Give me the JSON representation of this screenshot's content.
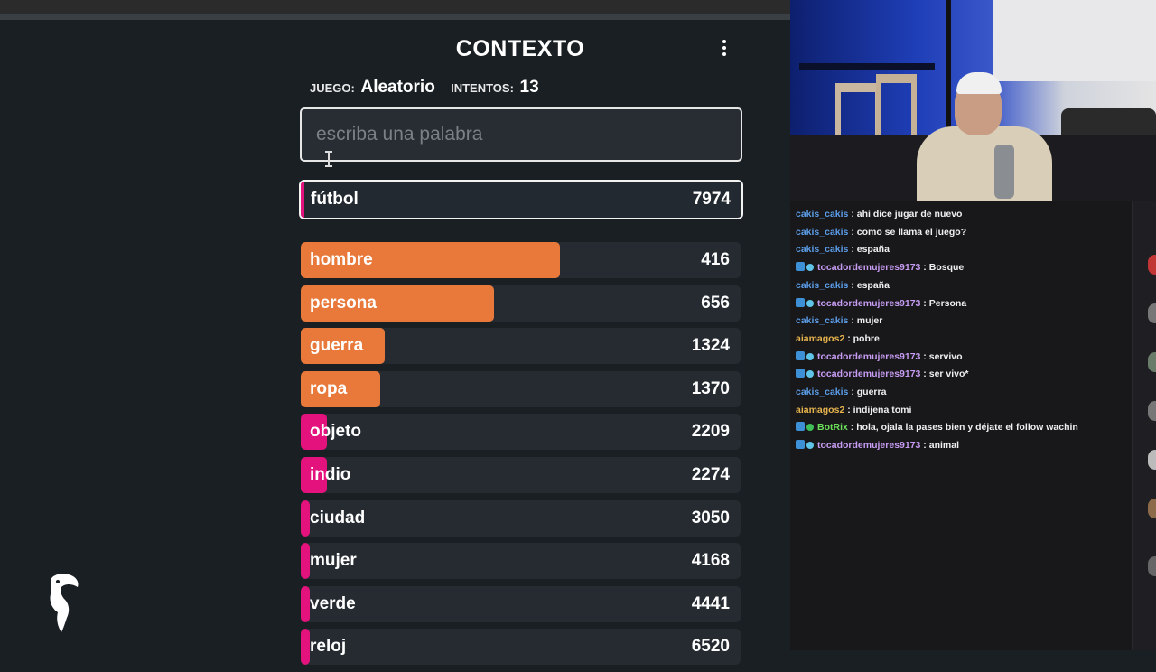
{
  "game": {
    "title": "CONTEXTO",
    "juego_label": "JUEGO:",
    "juego_value": "Aleatorio",
    "intentos_label": "INTENTOS:",
    "intentos_value": "13",
    "search_placeholder": "escriba una palabra",
    "current_guess": {
      "word": "fútbol",
      "rank": "7974"
    },
    "guesses": [
      {
        "word": "hombre",
        "rank": "416",
        "fill": 0.59,
        "color": "#e8793a"
      },
      {
        "word": "persona",
        "rank": "656",
        "fill": 0.44,
        "color": "#e8793a"
      },
      {
        "word": "guerra",
        "rank": "1324",
        "fill": 0.19,
        "color": "#e8793a"
      },
      {
        "word": "ropa",
        "rank": "1370",
        "fill": 0.18,
        "color": "#e8793a"
      },
      {
        "word": "objeto",
        "rank": "2209",
        "fill": 0.06,
        "color": "#e4127c"
      },
      {
        "word": "indio",
        "rank": "2274",
        "fill": 0.06,
        "color": "#e4127c"
      },
      {
        "word": "ciudad",
        "rank": "3050",
        "fill": 0.02,
        "color": "#e4127c"
      },
      {
        "word": "mujer",
        "rank": "4168",
        "fill": 0.01,
        "color": "#e4127c"
      },
      {
        "word": "verde",
        "rank": "4441",
        "fill": 0.01,
        "color": "#e4127c"
      },
      {
        "word": "reloj",
        "rank": "6520",
        "fill": 0.01,
        "color": "#e4127c"
      }
    ]
  },
  "chat": {
    "messages": [
      {
        "user": "cakis_cakis",
        "color": "#5b9ce6",
        "badges": [],
        "text": "ahi dice jugar de nuevo"
      },
      {
        "user": "cakis_cakis",
        "color": "#5b9ce6",
        "badges": [],
        "text": "como se llama el juego?"
      },
      {
        "user": "cakis_cakis",
        "color": "#5b9ce6",
        "badges": [],
        "text": "españa"
      },
      {
        "user": "tocadordemujeres9173",
        "color": "#c79cf2",
        "badges": [
          "prime",
          "gem"
        ],
        "text": "Bosque"
      },
      {
        "user": "cakis_cakis",
        "color": "#5b9ce6",
        "badges": [],
        "text": "españa"
      },
      {
        "user": "tocadordemujeres9173",
        "color": "#c79cf2",
        "badges": [
          "prime",
          "gem"
        ],
        "text": "Persona"
      },
      {
        "user": "cakis_cakis",
        "color": "#5b9ce6",
        "badges": [],
        "text": "mujer"
      },
      {
        "user": "aiamagos2",
        "color": "#e6b34d",
        "badges": [],
        "text": "pobre"
      },
      {
        "user": "tocadordemujeres9173",
        "color": "#c79cf2",
        "badges": [
          "prime",
          "gem"
        ],
        "text": "servivo"
      },
      {
        "user": "tocadordemujeres9173",
        "color": "#c79cf2",
        "badges": [
          "prime",
          "gem"
        ],
        "text": "ser vivo*"
      },
      {
        "user": "cakis_cakis",
        "color": "#5b9ce6",
        "badges": [],
        "text": "guerra"
      },
      {
        "user": "aiamagos2",
        "color": "#e6b34d",
        "badges": [],
        "text": "indijena tomi"
      },
      {
        "user": "BotRix",
        "color": "#6de05a",
        "badges": [
          "prime",
          "verified"
        ],
        "text": "hola, ojala la pases bien y déjate el follow wachin"
      },
      {
        "user": "tocadordemujeres9173",
        "color": "#c79cf2",
        "badges": [
          "prime",
          "gem"
        ],
        "text": "animal"
      }
    ],
    "separator": " : "
  },
  "icons": {
    "menu": "kebab-menu-icon",
    "logo": "toucan-logo-icon",
    "cursor": "text-cursor-icon"
  }
}
